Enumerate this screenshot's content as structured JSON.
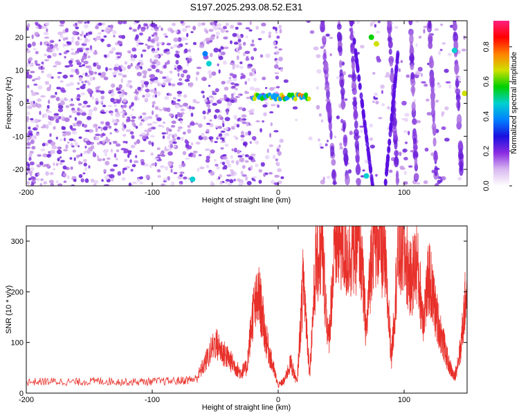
{
  "title": "S197.2025.293.08.52.E31",
  "colors": {
    "line": "#e8302a",
    "frame": "#000000",
    "background": "#ffffff"
  },
  "chart_data": [
    {
      "type": "heatmap",
      "xlabel": "Height of straight line (km)",
      "ylabel": "Frequency (Hz)",
      "xlim": [
        -200,
        150
      ],
      "ylim": [
        -25,
        25
      ],
      "x_ticks": [
        -200,
        -100,
        0,
        100
      ],
      "y_ticks": [
        -20,
        -10,
        0,
        10,
        20
      ],
      "colorbar": {
        "label": "Normalized spectral amplitude",
        "range": [
          0.0,
          0.95
        ],
        "ticks": [
          "0.0",
          "0.2",
          "0.4",
          "0.6",
          "0.8"
        ],
        "colormap": [
          "#ffffff",
          "#d9b8f0",
          "#8a2be2",
          "#1a10e0",
          "#0080ff",
          "#00d0d0",
          "#00d000",
          "#d0e000",
          "#ff8000",
          "#ff0000",
          "#ff2080"
        ]
      },
      "features": [
        {
          "label": "",
          "x_range": [
            -20,
            25
          ],
          "frequency": 2
        },
        {
          "label": "",
          "x_range": [
            72,
            80
          ],
          "frequency": 20
        }
      ]
    },
    {
      "type": "line",
      "xlabel": "Height of straight line (km)",
      "ylabel": "SNR (10 * v/v)",
      "xlim": [
        -200,
        150
      ],
      "ylim": [
        0,
        330
      ],
      "x_ticks": [
        -200,
        -100,
        0,
        100
      ],
      "y_ticks": [
        0,
        100,
        200,
        300
      ],
      "series": [
        {
          "color": "#e8302a",
          "x": [
            -200,
            -180,
            -160,
            -140,
            -120,
            -100,
            -80,
            -65,
            -58,
            -50,
            -44,
            -40,
            -35,
            -30,
            -25,
            -20,
            -15,
            -10,
            -5,
            0,
            5,
            10,
            15,
            20,
            25,
            30,
            35,
            40,
            45,
            50,
            55,
            60,
            65,
            70,
            75,
            80,
            85,
            90,
            95,
            100,
            105,
            110,
            115,
            120,
            125,
            130,
            135,
            140,
            145,
            150
          ],
          "y": [
            22,
            23,
            22,
            24,
            22,
            23,
            24,
            28,
            60,
            100,
            80,
            70,
            55,
            40,
            50,
            160,
            190,
            110,
            60,
            15,
            25,
            60,
            20,
            230,
            40,
            260,
            280,
            100,
            290,
            300,
            270,
            290,
            300,
            120,
            310,
            310,
            250,
            70,
            270,
            280,
            220,
            260,
            150,
            230,
            160,
            110,
            60,
            30,
            90,
            220
          ]
        }
      ]
    }
  ]
}
